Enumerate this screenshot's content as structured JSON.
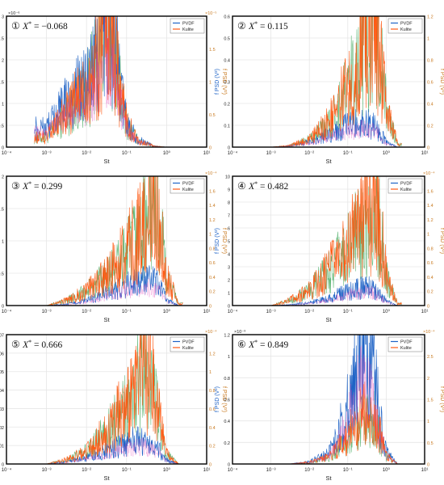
{
  "legend": {
    "pvdf": "PVDF",
    "kulite": "Kulite"
  },
  "colors": {
    "pvdf": "#1f63c6",
    "kulite": "#ff5a14",
    "mid": "#3fa85a",
    "magenta": "#e23cb6",
    "frame": "#000000",
    "grid": "#e6e6e6",
    "right_axis": "#c8781e"
  },
  "axes": {
    "xlabel": "St",
    "ylabel_left": "f PSD (V²)",
    "ylabel_right": "f PSD (V²)",
    "xscale": "log"
  },
  "chart_data": [
    {
      "type": "line",
      "panel_label": "①",
      "annotation": "X* = −0.068",
      "title": "",
      "xlabel": "St",
      "ylabel": "f PSD (V²)",
      "ylabel_right": "f PSD (V²)",
      "xlim": [
        0.0001,
        10
      ],
      "ylim_left": [
        0,
        3e-06
      ],
      "ylim_right": [
        0,
        1.6e-05
      ],
      "x_ticks": [
        "10⁻⁴",
        "10⁻³",
        "10⁻²",
        "10⁻¹",
        "10⁰",
        "10¹"
      ],
      "left_scale": "×10⁻⁶",
      "left_ticks": [
        "0",
        "0.5",
        "1",
        "1.5",
        "2",
        "2.5",
        "3"
      ],
      "right_scale": "×10⁻⁵",
      "right_ticks": [
        "0",
        "0.5",
        "1",
        "1.5"
      ],
      "series": [
        {
          "name": "PVDF",
          "x": [
            0.001,
            0.002,
            0.005,
            0.01,
            0.02,
            0.03,
            0.05,
            0.07,
            0.1,
            0.2,
            0.5,
            1
          ],
          "y": [
            4e-07,
            7e-07,
            1.1e-06,
            1.3e-06,
            1.9e-06,
            2.6e-06,
            2.2e-06,
            1.2e-06,
            5e-07,
            1.5e-07,
            2e-08,
            0
          ]
        },
        {
          "name": "Kulite",
          "x": [
            0.001,
            0.002,
            0.005,
            0.01,
            0.02,
            0.03,
            0.05,
            0.07,
            0.1,
            0.2,
            0.5,
            1
          ],
          "y": [
            1e-06,
            2.5e-06,
            4.5e-06,
            6e-06,
            9e-06,
            1.35e-05,
            1.1e-05,
            6e-06,
            2.5e-06,
            6e-07,
            1e-07,
            0
          ]
        }
      ]
    },
    {
      "type": "line",
      "panel_label": "②",
      "annotation": "X* = 0.115",
      "title": "",
      "xlabel": "St",
      "ylabel": "f PSD (V²)",
      "ylabel_right": "f PSD (V²)",
      "xlim": [
        0.0001,
        10
      ],
      "ylim_left": [
        0,
        0.6
      ],
      "ylim_right": [
        0,
        1.2
      ],
      "x_ticks": [
        "10⁻⁴",
        "10⁻³",
        "10⁻²",
        "10⁻¹",
        "10⁰",
        "10¹"
      ],
      "left_scale": "",
      "left_ticks": [
        "0",
        "0.1",
        "0.2",
        "0.3",
        "0.4",
        "0.5",
        "0.6"
      ],
      "right_scale": "",
      "right_ticks": [
        "0",
        "0.2",
        "0.4",
        "0.6",
        "0.8",
        "1",
        "1.2"
      ],
      "series": [
        {
          "name": "PVDF",
          "x": [
            0.001,
            0.003,
            0.01,
            0.03,
            0.1,
            0.2,
            0.3,
            0.5,
            0.7,
            1,
            2
          ],
          "y": [
            0,
            0.005,
            0.02,
            0.05,
            0.09,
            0.1,
            0.1,
            0.09,
            0.06,
            0.02,
            0
          ]
        },
        {
          "name": "Kulite",
          "x": [
            0.001,
            0.003,
            0.01,
            0.03,
            0.1,
            0.2,
            0.3,
            0.5,
            0.7,
            1,
            2
          ],
          "y": [
            0,
            0.01,
            0.06,
            0.18,
            0.45,
            0.7,
            0.85,
            0.95,
            0.7,
            0.3,
            0.02
          ]
        }
      ]
    },
    {
      "type": "line",
      "panel_label": "③",
      "annotation": "X* = 0.299",
      "title": "",
      "xlabel": "St",
      "ylabel": "f PSD (V²)",
      "ylabel_right": "f PSD (V²)",
      "xlim": [
        0.0001,
        10
      ],
      "ylim_left": [
        0,
        2.4
      ],
      "ylim_right": [
        0,
        0.00016
      ],
      "x_ticks": [
        "10⁻⁴",
        "10⁻³",
        "10⁻²",
        "10⁻¹",
        "10⁰",
        "10¹"
      ],
      "left_scale": "",
      "left_ticks": [
        "0",
        "0.5",
        "1",
        "1.5",
        "2"
      ],
      "right_scale": "×10⁻⁴",
      "right_ticks": [
        "0",
        "0.2",
        "0.4",
        "0.6",
        "0.8",
        "1",
        "1.2",
        "1.4",
        "1.6"
      ],
      "series": [
        {
          "name": "PVDF",
          "x": [
            0.001,
            0.003,
            0.01,
            0.03,
            0.1,
            0.2,
            0.3,
            0.5,
            0.7,
            1,
            2
          ],
          "y": [
            0,
            0.02,
            0.08,
            0.2,
            0.35,
            0.4,
            0.42,
            0.4,
            0.3,
            0.1,
            0
          ]
        },
        {
          "name": "Kulite",
          "x": [
            0.001,
            0.003,
            0.01,
            0.03,
            0.1,
            0.2,
            0.3,
            0.5,
            0.7,
            1,
            2
          ],
          "y": [
            0,
            5e-06,
            1.5e-05,
            3e-05,
            5.5e-05,
            7.5e-05,
            9e-05,
            0.000105,
            8e-05,
            3e-05,
            2e-06
          ]
        }
      ]
    },
    {
      "type": "line",
      "panel_label": "④",
      "annotation": "X* = 0.482",
      "title": "",
      "xlabel": "St",
      "ylabel": "f PSD (V²)",
      "ylabel_right": "f PSD (V²)",
      "xlim": [
        0.0001,
        10
      ],
      "ylim_left": [
        0,
        10
      ],
      "ylim_right": [
        0,
        0.00016
      ],
      "x_ticks": [
        "10⁻⁴",
        "10⁻³",
        "10⁻²",
        "10⁻¹",
        "10⁰",
        "10¹"
      ],
      "left_scale": "",
      "left_ticks": [
        "0",
        "1",
        "2",
        "3",
        "4",
        "5",
        "6",
        "7",
        "8",
        "9",
        "10"
      ],
      "right_scale": "×10⁻⁴",
      "right_ticks": [
        "0",
        "0.2",
        "0.4",
        "0.6",
        "0.8",
        "1",
        "1.2",
        "1.4",
        "1.6"
      ],
      "series": [
        {
          "name": "PVDF",
          "x": [
            0.001,
            0.003,
            0.01,
            0.03,
            0.1,
            0.2,
            0.3,
            0.5,
            0.7,
            1,
            2
          ],
          "y": [
            0,
            0.05,
            0.2,
            0.5,
            1.0,
            1.2,
            1.3,
            1.2,
            0.8,
            0.3,
            0
          ]
        },
        {
          "name": "Kulite",
          "x": [
            0.001,
            0.003,
            0.01,
            0.03,
            0.1,
            0.2,
            0.3,
            0.5,
            0.7,
            1,
            2
          ],
          "y": [
            0,
            5e-06,
            1.5e-05,
            3.5e-05,
            6e-05,
            8e-05,
            9.5e-05,
            0.000105,
            8e-05,
            3e-05,
            2e-06
          ]
        }
      ]
    },
    {
      "type": "line",
      "panel_label": "⑤",
      "annotation": "X* = 0.666",
      "title": "",
      "xlabel": "St",
      "ylabel": "f PSD (V²)",
      "ylabel_right": "f PSD (V²)",
      "xlim": [
        0.0001,
        10
      ],
      "ylim_left": [
        0,
        0.07
      ],
      "ylim_right": [
        0,
        0.00012
      ],
      "x_ticks": [
        "10⁻⁴",
        "10⁻³",
        "10⁻²",
        "10⁻¹",
        "10⁰",
        "10¹"
      ],
      "left_scale": "",
      "left_ticks": [
        "0",
        "0.01",
        "0.02",
        "0.03",
        "0.04",
        "0.05",
        "0.06",
        "0.07"
      ],
      "right_scale": "×10⁻⁴",
      "right_ticks": [
        "0",
        "0.2",
        "0.4",
        "0.6",
        "0.8",
        "1",
        "1.2"
      ],
      "series": [
        {
          "name": "PVDF",
          "x": [
            0.001,
            0.003,
            0.01,
            0.03,
            0.1,
            0.2,
            0.3,
            0.5,
            0.7,
            1,
            2
          ],
          "y": [
            0,
            0.001,
            0.003,
            0.006,
            0.01,
            0.012,
            0.012,
            0.01,
            0.006,
            0.002,
            0
          ]
        },
        {
          "name": "Kulite",
          "x": [
            0.001,
            0.003,
            0.01,
            0.03,
            0.1,
            0.2,
            0.3,
            0.5,
            0.7,
            1,
            2
          ],
          "y": [
            0,
            3e-06,
            1e-05,
            2.5e-05,
            4.5e-05,
            6.5e-05,
            7.5e-05,
            5.5e-05,
            3e-05,
            8e-06,
            0
          ]
        }
      ]
    },
    {
      "type": "line",
      "panel_label": "⑥",
      "annotation": "X* = 0.849",
      "title": "",
      "xlabel": "St",
      "ylabel": "f PSD (V²)",
      "ylabel_right": "f PSD (V²)",
      "xlim": [
        0.0001,
        10
      ],
      "ylim_left": [
        0,
        0.0012
      ],
      "ylim_right": [
        0,
        0.00028
      ],
      "x_ticks": [
        "10⁻⁴",
        "10⁻³",
        "10⁻²",
        "10⁻¹",
        "10⁰",
        "10¹"
      ],
      "left_scale": "×10⁻³",
      "left_ticks": [
        "0",
        "0.2",
        "0.4",
        "0.6",
        "0.8",
        "1",
        "1.2"
      ],
      "right_scale": "×10⁻⁴",
      "right_ticks": [
        "0",
        "0.5",
        "1",
        "1.5",
        "2",
        "2.5"
      ],
      "series": [
        {
          "name": "PVDF",
          "x": [
            0.001,
            0.003,
            0.01,
            0.03,
            0.05,
            0.1,
            0.2,
            0.3,
            0.5,
            0.7,
            1,
            2
          ],
          "y": [
            0,
            0,
            2e-05,
            8e-05,
            0.0002,
            0.0005,
            0.0009,
            0.00095,
            0.0007,
            0.00035,
            0.0001,
            0
          ]
        },
        {
          "name": "Kulite",
          "x": [
            0.001,
            0.003,
            0.01,
            0.03,
            0.05,
            0.1,
            0.2,
            0.3,
            0.5,
            0.7,
            1,
            2
          ],
          "y": [
            0,
            0,
            3e-06,
            1.2e-05,
            2.5e-05,
            5e-05,
            8e-05,
            9e-05,
            8.5e-05,
            5e-05,
            1.5e-05,
            0
          ]
        }
      ]
    }
  ]
}
